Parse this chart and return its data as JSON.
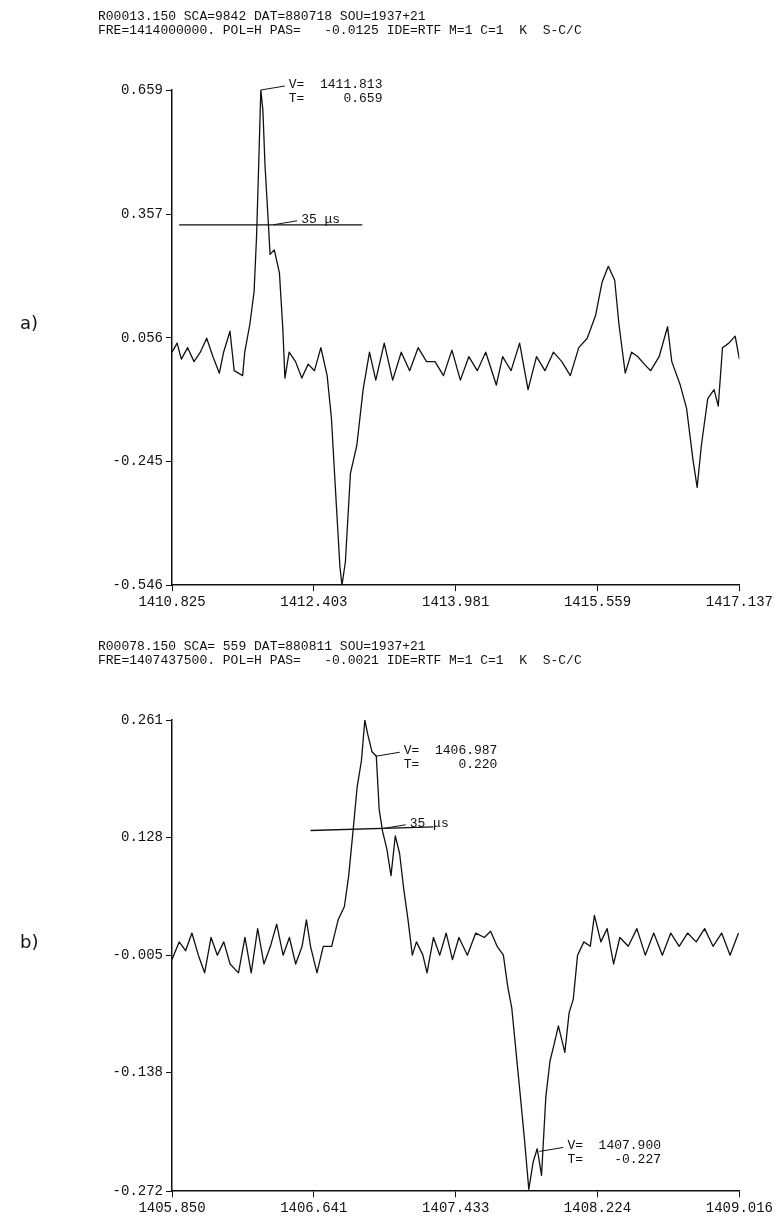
{
  "chart_data": [
    {
      "type": "line",
      "title": "R00013.150 SCA=9842 DAT=880718 SOU=1937+21",
      "subtitle": "FRE=1414000000. POL=H PAS=   -0.0125 IDE=RTF M=1 C=1  K  S-C/C",
      "xlim": [
        1410.825,
        1417.137
      ],
      "xticks": [
        1410.825,
        1412.403,
        1413.981,
        1415.559,
        1417.137
      ],
      "ylim": [
        -0.546,
        0.659
      ],
      "yticks": [
        -0.546,
        -0.245,
        0.056,
        0.357,
        0.659
      ],
      "grid": false,
      "legend": false,
      "annotations": [
        "a)",
        {
          "text": "V=  1411.813\nT=     0.659",
          "x": 1411.813,
          "y": 0.659
        },
        {
          "text": "35 μs",
          "x": 1411.95,
          "y": 0.331
        }
      ],
      "series": [
        {
          "type": "line",
          "color": "#111111",
          "x": [
            1410.825,
            1410.882,
            1410.929,
            1410.999,
            1411.07,
            1411.14,
            1411.211,
            1411.281,
            1411.352,
            1411.399,
            1411.47,
            1411.517,
            1411.611,
            1411.634,
            1411.691,
            1411.738,
            1411.766,
            1411.789,
            1411.813,
            1411.836,
            1411.86,
            1411.893,
            1411.916,
            1411.963,
            1412.02,
            1412.058,
            1412.081,
            1412.128,
            1412.199,
            1412.269,
            1412.34,
            1412.41,
            1412.481,
            1412.551,
            1412.598,
            1412.645,
            1412.693,
            1412.716,
            1412.754,
            1412.81,
            1412.881,
            1412.951,
            1413.022,
            1413.092,
            1413.186,
            1413.28,
            1413.375,
            1413.469,
            1413.563,
            1413.657,
            1413.751,
            1413.845,
            1413.939,
            1414.033,
            1414.127,
            1414.221,
            1414.315,
            1414.433,
            1414.503,
            1414.597,
            1414.692,
            1414.786,
            1414.88,
            1414.974,
            1415.068,
            1415.162,
            1415.256,
            1415.35,
            1415.444,
            1415.538,
            1415.609,
            1415.679,
            1415.75,
            1415.797,
            1415.867,
            1415.938,
            1416.008,
            1416.079,
            1416.15,
            1416.244,
            1416.338,
            1416.385,
            1416.479,
            1416.549,
            1416.62,
            1416.667,
            1416.714,
            1416.785,
            1416.855,
            1416.902,
            1416.949,
            1417.02,
            1417.09,
            1417.137
          ],
          "values": [
            0.021,
            0.043,
            0.004,
            0.032,
            -0.002,
            0.021,
            0.055,
            0.01,
            -0.03,
            0.021,
            0.072,
            -0.024,
            -0.036,
            0.021,
            0.089,
            0.168,
            0.304,
            0.474,
            0.659,
            0.61,
            0.474,
            0.35,
            0.259,
            0.27,
            0.214,
            0.078,
            -0.042,
            0.021,
            -0.002,
            -0.042,
            -0.008,
            -0.024,
            0.032,
            -0.036,
            -0.138,
            -0.319,
            -0.501,
            -0.546,
            -0.489,
            -0.274,
            -0.206,
            -0.07,
            0.021,
            -0.047,
            0.043,
            -0.047,
            0.021,
            -0.024,
            0.032,
            -0.002,
            -0.002,
            -0.036,
            0.026,
            -0.047,
            0.01,
            -0.024,
            0.021,
            -0.059,
            0.01,
            -0.024,
            0.043,
            -0.07,
            0.01,
            -0.024,
            0.021,
            -0.002,
            -0.036,
            0.032,
            0.055,
            0.111,
            0.191,
            0.23,
            0.196,
            0.089,
            -0.03,
            0.021,
            0.01,
            -0.008,
            -0.024,
            0.01,
            0.083,
            -0.002,
            -0.059,
            -0.115,
            -0.24,
            -0.308,
            -0.206,
            -0.092,
            -0.07,
            -0.11,
            0.032,
            0.043,
            0.06,
            0.004
          ]
        },
        {
          "type": "line",
          "color": "#111111",
          "x": [
            1410.905,
            1412.942
          ],
          "values": [
            0.331,
            0.331
          ]
        }
      ]
    },
    {
      "type": "line",
      "title": "R00078.150 SCA= 559 DAT=880811 SOU=1937+21",
      "subtitle": "FRE=1407437500. POL=H PAS=   -0.0021 IDE=RTF M=1 C=1  K  S-C/C",
      "xlim": [
        1405.85,
        1409.016
      ],
      "xticks": [
        {
          "value": 1405.85,
          "label": "1405.850"
        },
        1406.641,
        1407.433,
        1408.224,
        1409.016
      ],
      "ylim": [
        -0.272,
        0.261
      ],
      "yticks": [
        -0.272,
        -0.138,
        -0.005,
        0.128,
        0.261
      ],
      "grid": false,
      "legend": false,
      "annotations": [
        "b)",
        {
          "text": "V=  1406.987\nT=     0.220",
          "x": 1406.987,
          "y": 0.22
        },
        {
          "text": "35 μs",
          "x": 1407.02,
          "y": 0.138
        },
        {
          "text": "V=  1407.900\nT=    -0.227",
          "x": 1407.9,
          "y": -0.227
        }
      ],
      "series": [
        {
          "type": "line",
          "color": "#111111",
          "x": [
            1405.85,
            1405.89,
            1405.926,
            1405.961,
            1405.997,
            1406.032,
            1406.068,
            1406.103,
            1406.139,
            1406.174,
            1406.221,
            1406.257,
            1406.292,
            1406.328,
            1406.363,
            1406.399,
            1406.434,
            1406.47,
            1406.505,
            1406.54,
            1406.576,
            1406.6,
            1406.623,
            1406.659,
            1406.694,
            1406.741,
            1406.777,
            1406.812,
            1406.836,
            1406.86,
            1406.883,
            1406.907,
            1406.926,
            1406.942,
            1406.966,
            1406.99,
            1407.006,
            1407.025,
            1407.049,
            1407.072,
            1407.096,
            1407.12,
            1407.143,
            1407.167,
            1407.191,
            1407.214,
            1407.25,
            1407.273,
            1407.309,
            1407.344,
            1407.38,
            1407.415,
            1407.451,
            1407.498,
            1407.545,
            1407.593,
            1407.628,
            1407.664,
            1407.699,
            1407.723,
            1407.746,
            1407.77,
            1407.794,
            1407.817,
            1407.841,
            1407.865,
            1407.888,
            1407.912,
            1407.936,
            1407.959,
            1407.983,
            1408.006,
            1408.042,
            1408.066,
            1408.089,
            1408.113,
            1408.148,
            1408.184,
            1408.207,
            1408.243,
            1408.278,
            1408.314,
            1408.349,
            1408.396,
            1408.444,
            1408.491,
            1408.538,
            1408.586,
            1408.633,
            1408.68,
            1408.727,
            1408.775,
            1408.822,
            1408.869,
            1408.917,
            1408.964,
            1409.011
          ],
          "values": [
            -0.01,
            0.01,
            0.0,
            0.02,
            -0.005,
            -0.025,
            0.015,
            -0.005,
            0.01,
            -0.015,
            -0.025,
            0.015,
            -0.025,
            0.025,
            -0.015,
            0.005,
            0.03,
            -0.005,
            0.015,
            -0.015,
            0.005,
            0.035,
            0.005,
            -0.025,
            0.005,
            0.005,
            0.035,
            0.05,
            0.085,
            0.135,
            0.185,
            0.215,
            0.261,
            0.245,
            0.225,
            0.22,
            0.16,
            0.135,
            0.115,
            0.085,
            0.13,
            0.11,
            0.07,
            0.035,
            -0.005,
            0.01,
            -0.005,
            -0.025,
            0.015,
            -0.005,
            0.02,
            -0.01,
            0.015,
            -0.005,
            0.02,
            0.015,
            0.022,
            0.005,
            -0.005,
            -0.04,
            -0.065,
            -0.115,
            -0.165,
            -0.214,
            -0.27,
            -0.239,
            -0.224,
            -0.254,
            -0.165,
            -0.125,
            -0.105,
            -0.085,
            -0.115,
            -0.07,
            -0.055,
            -0.005,
            0.01,
            0.005,
            0.04,
            0.01,
            0.025,
            -0.015,
            0.015,
            0.005,
            0.025,
            -0.005,
            0.02,
            -0.005,
            0.02,
            0.005,
            0.02,
            0.01,
            0.025,
            0.005,
            0.02,
            -0.005,
            0.02
          ]
        },
        {
          "type": "line",
          "color": "#111111",
          "x": [
            1406.623,
            1407.309
          ],
          "values": [
            0.136,
            0.14
          ]
        }
      ]
    }
  ]
}
